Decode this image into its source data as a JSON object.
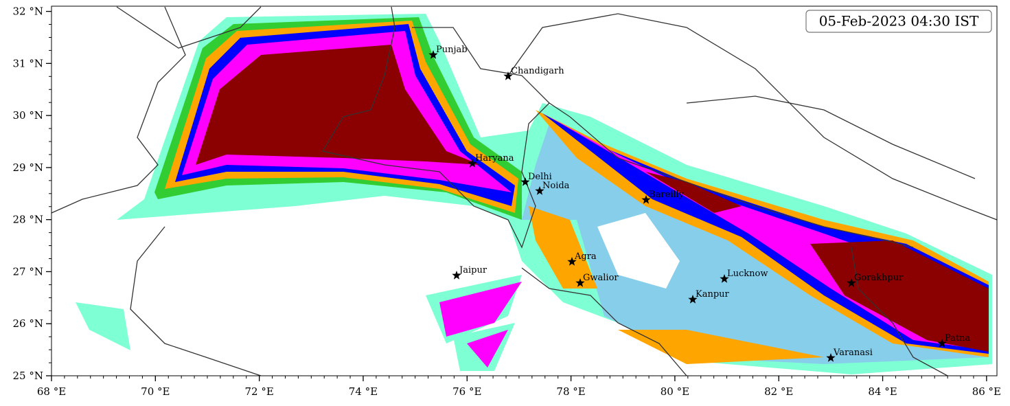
{
  "map": {
    "timestamp": "05-Feb-2023 04:30 IST",
    "xlim": [
      68,
      86.2
    ],
    "ylim": [
      25,
      32.1
    ],
    "xticks": [
      {
        "value": 68,
        "label": "68 °E"
      },
      {
        "value": 70,
        "label": "70 °E"
      },
      {
        "value": 72,
        "label": "72 °E"
      },
      {
        "value": 74,
        "label": "74 °E"
      },
      {
        "value": 76,
        "label": "76 °E"
      },
      {
        "value": 78,
        "label": "78 °E"
      },
      {
        "value": 80,
        "label": "80 °E"
      },
      {
        "value": 82,
        "label": "82 °E"
      },
      {
        "value": 84,
        "label": "84 °E"
      },
      {
        "value": 86,
        "label": "86 °E"
      }
    ],
    "yticks": [
      {
        "value": 25,
        "label": "25 °N"
      },
      {
        "value": 26,
        "label": "26 °N"
      },
      {
        "value": 27,
        "label": "27 °N"
      },
      {
        "value": 28,
        "label": "28 °N"
      },
      {
        "value": 29,
        "label": "29 °N"
      },
      {
        "value": 30,
        "label": "30 °N"
      },
      {
        "value": 31,
        "label": "31 °N"
      },
      {
        "value": 32,
        "label": "32 °N"
      }
    ],
    "cities": [
      "Punjab",
      "Chandigarh",
      "Haryana",
      "Delhi",
      "Noida",
      "Bareilly",
      "Agra",
      "Gwalior",
      "Jaipur",
      "Lucknow",
      "Kanpur",
      "Gorakhpur",
      "Varanasi",
      "Patna"
    ]
  }
}
